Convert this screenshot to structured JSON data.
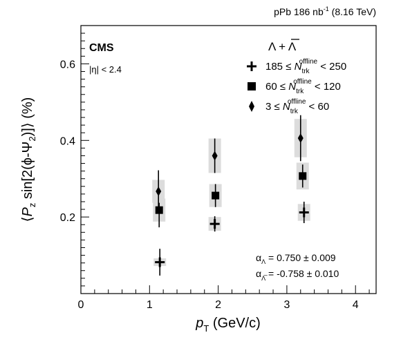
{
  "chart_data": {
    "type": "scatter",
    "header_right": "pPb 186 nb⁻¹ (8.16 TeV)",
    "experiment": "CMS",
    "eta_cut": "|η| < 2.4",
    "xlabel": "p_T (GeV/c)",
    "ylabel": "⟨P_z sin[2(ϕ-Ψ_2)]⟩ (%)",
    "xlim": [
      0,
      4.3
    ],
    "ylim": [
      0,
      0.7
    ],
    "x_ticks": [
      0,
      1,
      2,
      3,
      4
    ],
    "y_ticks": [
      0.2,
      0.4,
      0.6
    ],
    "legend_header": "Λ + Λ̅",
    "legend_placement": "top-right",
    "grid": false,
    "series": [
      {
        "name": "185 ≤ N_trk^offline < 250",
        "marker": "cross",
        "points": [
          {
            "x": 1.15,
            "y": 0.082,
            "stat": 0.035,
            "syst": 0.01
          },
          {
            "x": 1.95,
            "y": 0.182,
            "stat": 0.02,
            "syst": 0.018
          },
          {
            "x": 3.25,
            "y": 0.212,
            "stat": 0.028,
            "syst": 0.022
          }
        ]
      },
      {
        "name": "60 ≤ N_trk^offline < 120",
        "marker": "square",
        "points": [
          {
            "x": 1.14,
            "y": 0.218,
            "stat": 0.045,
            "syst": 0.03
          },
          {
            "x": 1.96,
            "y": 0.256,
            "stat": 0.03,
            "syst": 0.03
          },
          {
            "x": 3.23,
            "y": 0.307,
            "stat": 0.03,
            "syst": 0.035
          }
        ]
      },
      {
        "name": "3 ≤ N_trk^offline < 60",
        "marker": "diamond",
        "points": [
          {
            "x": 1.13,
            "y": 0.267,
            "stat": 0.055,
            "syst": 0.03
          },
          {
            "x": 1.95,
            "y": 0.36,
            "stat": 0.045,
            "syst": 0.045
          },
          {
            "x": 3.2,
            "y": 0.406,
            "stat": 0.06,
            "syst": 0.05
          }
        ]
      }
    ],
    "annotations": [
      "α_Λ = 0.750 ± 0.009",
      "α_Λ̅ = -0.758 ± 0.010"
    ]
  }
}
